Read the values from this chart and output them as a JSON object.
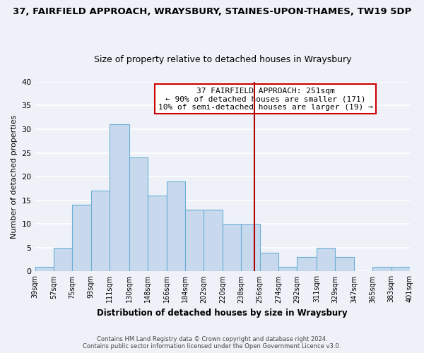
{
  "title": "37, FAIRFIELD APPROACH, WRAYSBURY, STAINES-UPON-THAMES, TW19 5DP",
  "subtitle": "Size of property relative to detached houses in Wraysbury",
  "xlabel": "Distribution of detached houses by size in Wraysbury",
  "ylabel": "Number of detached properties",
  "bar_color": "#c8d9ee",
  "bar_edge_color": "#6aaed6",
  "bin_edges": [
    39,
    57,
    75,
    93,
    111,
    130,
    148,
    166,
    184,
    202,
    220,
    238,
    256,
    274,
    292,
    311,
    329,
    347,
    365,
    383,
    401
  ],
  "bar_heights": [
    1,
    5,
    14,
    17,
    31,
    24,
    16,
    19,
    13,
    13,
    10,
    10,
    4,
    1,
    3,
    5,
    3,
    0,
    1,
    1
  ],
  "tick_labels": [
    "39sqm",
    "57sqm",
    "75sqm",
    "93sqm",
    "111sqm",
    "130sqm",
    "148sqm",
    "166sqm",
    "184sqm",
    "202sqm",
    "220sqm",
    "238sqm",
    "256sqm",
    "274sqm",
    "292sqm",
    "311sqm",
    "329sqm",
    "347sqm",
    "365sqm",
    "383sqm",
    "401sqm"
  ],
  "property_line_x": 251,
  "property_line_color": "#aa0000",
  "ylim": [
    0,
    40
  ],
  "xlim": [
    39,
    401
  ],
  "annotation_title": "37 FAIRFIELD APPROACH: 251sqm",
  "annotation_line1": "← 90% of detached houses are smaller (171)",
  "annotation_line2": "10% of semi-detached houses are larger (19) →",
  "footer_line1": "Contains HM Land Registry data © Crown copyright and database right 2024.",
  "footer_line2": "Contains public sector information licensed under the Open Government Licence v3.0.",
  "background_color": "#eef2f8",
  "grid_color": "#ffffff",
  "title_fontsize": 9.5,
  "subtitle_fontsize": 9
}
